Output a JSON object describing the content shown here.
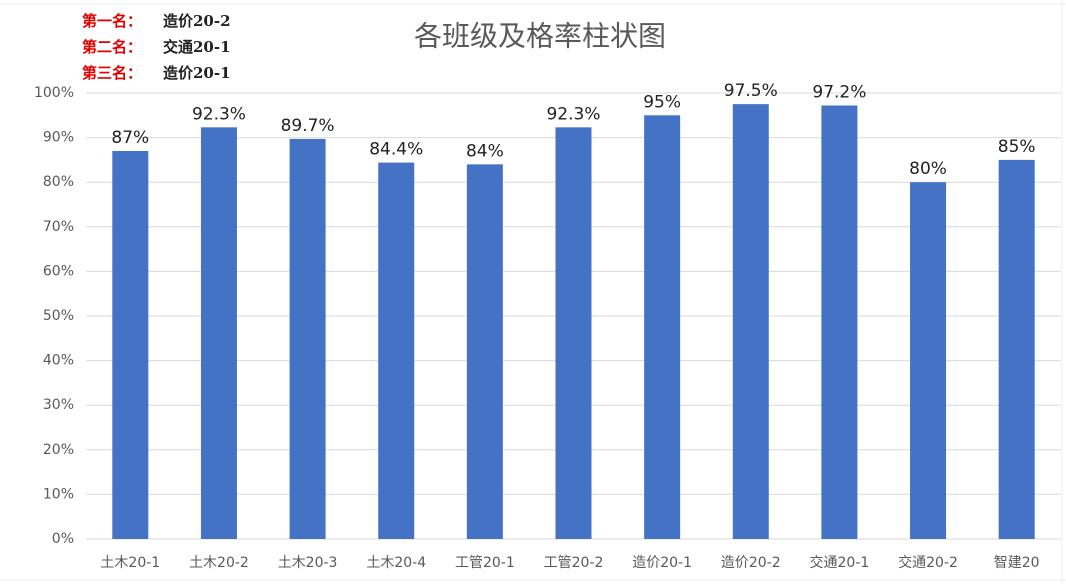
{
  "chart_data": {
    "type": "bar",
    "title": "各班级及格率柱状图",
    "annotations": [
      {
        "rank": "第一名：",
        "name": "造价20-2"
      },
      {
        "rank": "第二名：",
        "name": "交通20-1"
      },
      {
        "rank": "第三名：",
        "name": "造价20-1"
      }
    ],
    "categories": [
      "土木20-1",
      "土木20-2",
      "土木20-3",
      "土木20-4",
      "工管20-1",
      "工管20-2",
      "造价20-1",
      "造价20-2",
      "交通20-1",
      "交通20-2",
      "智建20"
    ],
    "values": [
      87,
      92.3,
      89.7,
      84.4,
      84,
      92.3,
      95,
      97.5,
      97.2,
      80,
      85
    ],
    "value_labels": [
      "87%",
      "92.3%",
      "89.7%",
      "84.4%",
      "84%",
      "92.3%",
      "95%",
      "97.5%",
      "97.2%",
      "80%",
      "85%"
    ],
    "color": "#4472c4",
    "ylim": [
      0,
      100
    ],
    "yticks": [
      {
        "value": 0,
        "label": "0%"
      },
      {
        "value": 10,
        "label": "10%"
      },
      {
        "value": 20,
        "label": "20%"
      },
      {
        "value": 30,
        "label": "30%"
      },
      {
        "value": 40,
        "label": "40%"
      },
      {
        "value": 50,
        "label": "50%"
      },
      {
        "value": 60,
        "label": "60%"
      },
      {
        "value": 70,
        "label": "70%"
      },
      {
        "value": 80,
        "label": "80%"
      },
      {
        "value": 90,
        "label": "90%"
      },
      {
        "value": 100,
        "label": "100%"
      }
    ],
    "grid": true
  }
}
